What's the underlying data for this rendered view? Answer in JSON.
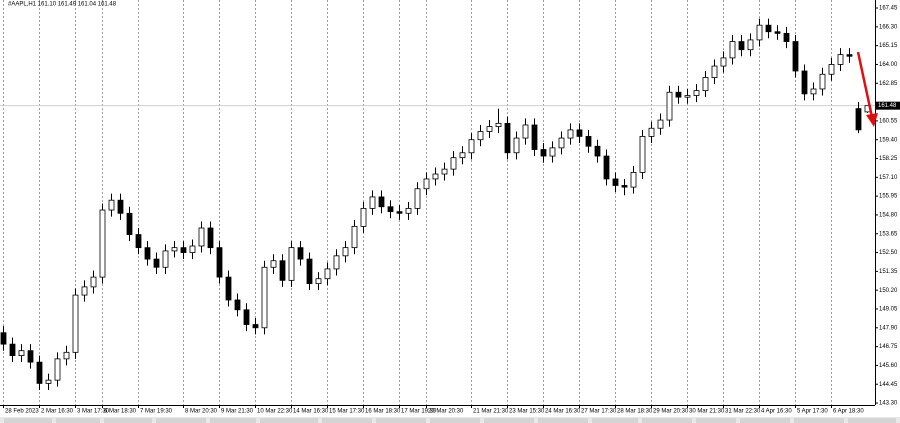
{
  "chart_data": {
    "type": "candlestick",
    "title": "#AAPL,H1 161.10 161.49 161.04 161.48",
    "categories": [
      "28 Feb 2023",
      null,
      null,
      null,
      "2 Mar 16:30",
      null,
      null,
      null,
      "3 Mar 17:30",
      null,
      null,
      "6 Mar 18:30",
      null,
      null,
      null,
      "7 Mar 19:30",
      null,
      null,
      null,
      null,
      "8 Mar 20:30",
      null,
      null,
      null,
      "9 Mar 21:30",
      null,
      null,
      null,
      "10 Mar 22:30",
      null,
      null,
      null,
      "14 Mar 16:30",
      null,
      null,
      null,
      "15 Mar 17:30",
      null,
      null,
      null,
      "16 Mar 18:30",
      null,
      null,
      null,
      "17 Mar 19:30",
      null,
      null,
      "20 Mar 20:30",
      null,
      null,
      null,
      null,
      "21 Mar 21:30",
      null,
      null,
      null,
      "23 Mar 15:30",
      null,
      null,
      null,
      "24 Mar 16:30",
      null,
      null,
      null,
      "27 Mar 17:30",
      null,
      null,
      null,
      "28 Mar 18:30",
      null,
      null,
      null,
      "29 Mar 20:30",
      null,
      null,
      null,
      "30 Mar 21:30",
      null,
      null,
      null,
      "31 Mar 22:30",
      null,
      null,
      null,
      "4 Apr 16:30",
      null,
      null,
      null,
      "5 Apr 17:30",
      null,
      null,
      null,
      "6 Apr 18:30",
      null,
      null,
      null,
      null
    ],
    "open": [
      147.6,
      146.9,
      146.2,
      146.5,
      145.8,
      144.5,
      144.7,
      146.0,
      146.4,
      149.9,
      150.4,
      151.0,
      155.1,
      155.7,
      154.9,
      153.6,
      152.8,
      152.1,
      151.6,
      152.6,
      152.8,
      152.5,
      152.9,
      154.0,
      152.8,
      151.0,
      149.6,
      149.0,
      148.1,
      147.9,
      151.6,
      152.0,
      150.8,
      152.8,
      152.1,
      150.6,
      150.9,
      151.5,
      152.3,
      152.8,
      154.1,
      155.2,
      155.9,
      155.3,
      155.0,
      154.9,
      155.2,
      156.4,
      157.0,
      157.3,
      157.6,
      158.3,
      158.6,
      159.4,
      159.9,
      160.2,
      160.4,
      158.6,
      159.5,
      160.3,
      158.8,
      158.4,
      158.9,
      159.5,
      160.0,
      159.6,
      159.0,
      158.4,
      157.0,
      156.6,
      156.5,
      157.4,
      159.6,
      160.1,
      160.6,
      162.3,
      162.0,
      162.1,
      162.4,
      163.2,
      163.9,
      164.4,
      165.4,
      164.9,
      165.5,
      166.4,
      166.0,
      165.9,
      165.4,
      163.6,
      162.2,
      162.5,
      163.4,
      164.0,
      164.6,
      161.3,
      161.1
    ],
    "high": [
      148.0,
      147.3,
      146.9,
      146.9,
      146.2,
      145.1,
      146.4,
      146.8,
      150.3,
      150.8,
      151.4,
      155.5,
      156.1,
      156.1,
      155.3,
      154.0,
      153.2,
      152.5,
      153.0,
      153.2,
      153.2,
      153.3,
      154.4,
      154.4,
      153.2,
      151.4,
      150.0,
      149.4,
      148.5,
      152.0,
      152.4,
      152.4,
      153.2,
      153.2,
      152.5,
      151.3,
      151.9,
      152.7,
      153.2,
      154.5,
      155.6,
      156.3,
      156.3,
      155.7,
      155.4,
      155.6,
      156.8,
      157.4,
      157.7,
      158.0,
      158.7,
      159.0,
      159.8,
      160.3,
      160.6,
      161.3,
      160.8,
      159.9,
      160.7,
      160.7,
      159.2,
      159.3,
      159.9,
      160.4,
      160.4,
      160.0,
      159.4,
      158.8,
      157.4,
      157.0,
      157.8,
      160.0,
      160.5,
      161.0,
      162.7,
      162.7,
      162.5,
      162.8,
      163.6,
      164.3,
      164.8,
      165.8,
      165.8,
      165.9,
      166.8,
      166.8,
      166.4,
      166.3,
      165.8,
      164.0,
      162.9,
      163.8,
      164.4,
      165.0,
      165.0,
      161.7,
      161.49
    ],
    "low": [
      146.5,
      145.8,
      145.8,
      145.4,
      144.1,
      144.1,
      144.3,
      145.6,
      146.0,
      149.5,
      150.0,
      150.6,
      154.7,
      154.5,
      153.2,
      152.4,
      151.7,
      151.2,
      151.2,
      152.2,
      152.1,
      152.1,
      152.5,
      152.4,
      150.6,
      149.2,
      148.6,
      147.7,
      147.5,
      147.5,
      151.2,
      150.4,
      150.4,
      151.7,
      150.2,
      150.2,
      150.5,
      151.1,
      151.9,
      152.4,
      153.7,
      154.8,
      154.9,
      154.6,
      154.5,
      154.5,
      154.8,
      156.0,
      156.6,
      156.9,
      157.2,
      157.9,
      158.2,
      159.0,
      159.5,
      159.8,
      158.2,
      158.2,
      159.1,
      158.4,
      158.0,
      158.0,
      158.5,
      159.1,
      159.2,
      158.6,
      158.0,
      156.6,
      156.2,
      156.0,
      156.1,
      157.0,
      159.2,
      159.7,
      160.2,
      161.6,
      161.6,
      161.7,
      162.0,
      162.8,
      163.5,
      164.0,
      164.5,
      164.5,
      165.1,
      165.6,
      165.5,
      165.0,
      163.2,
      161.8,
      161.8,
      162.1,
      163.0,
      163.6,
      164.1,
      159.8,
      161.04
    ],
    "close": [
      146.9,
      146.2,
      146.5,
      145.8,
      144.5,
      144.7,
      146.0,
      146.4,
      149.9,
      150.4,
      151.0,
      155.1,
      155.7,
      154.9,
      153.6,
      152.8,
      152.1,
      151.6,
      152.6,
      152.8,
      152.5,
      152.9,
      154.0,
      152.8,
      151.0,
      149.6,
      149.0,
      148.1,
      147.9,
      151.6,
      152.0,
      150.8,
      152.8,
      152.1,
      150.6,
      150.9,
      151.5,
      152.3,
      152.8,
      154.1,
      155.2,
      155.9,
      155.3,
      155.0,
      154.9,
      155.2,
      156.4,
      157.0,
      157.3,
      157.6,
      158.3,
      158.6,
      159.4,
      159.9,
      160.2,
      160.4,
      158.6,
      159.5,
      160.3,
      158.8,
      158.4,
      158.9,
      159.5,
      160.0,
      159.6,
      159.0,
      158.4,
      157.0,
      156.6,
      156.5,
      157.4,
      159.6,
      160.1,
      160.6,
      162.3,
      162.0,
      162.1,
      162.4,
      163.2,
      163.9,
      164.4,
      165.4,
      164.9,
      165.5,
      166.4,
      166.0,
      165.9,
      165.4,
      163.6,
      162.2,
      162.5,
      163.4,
      164.0,
      164.6,
      164.5,
      160.0,
      161.48
    ],
    "current_price": 161.48,
    "ylim": [
      143.18,
      167.94
    ],
    "yticks": [
      {
        "value": 143.3,
        "label": "143.30"
      },
      144.45,
      {
        "value": 145.6,
        "label": "145.60"
      },
      146.75,
      {
        "value": 147.9,
        "label": "147.90"
      },
      149.05,
      {
        "value": 150.2,
        "label": "150.20"
      },
      151.35,
      {
        "value": 152.5,
        "label": "152.50"
      },
      153.65,
      {
        "value": 154.8,
        "label": "154.80"
      },
      155.95,
      {
        "value": 157.1,
        "label": "157.10"
      },
      158.25,
      {
        "value": 159.4,
        "label": "159.40"
      },
      160.55,
      162.85,
      {
        "value": 164.0,
        "label": "164.00"
      },
      165.15,
      {
        "value": 166.3,
        "label": "166.30"
      },
      167.45
    ],
    "colors": {
      "up": "#ffffff",
      "down": "#000000",
      "outline": "#000000"
    },
    "grid": true
  }
}
